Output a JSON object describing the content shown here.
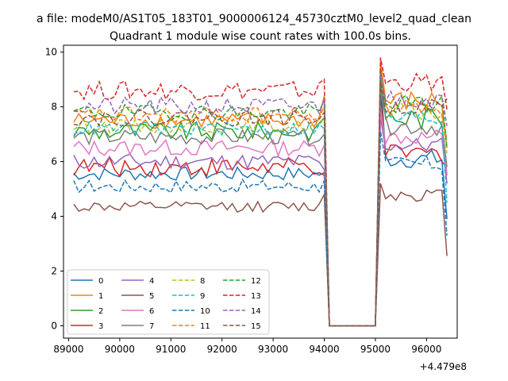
{
  "suptitle": "a file: modeM0/AS1T05_183T01_9000006124_45730cztM0_level2_quad_clean",
  "chart_data": {
    "type": "line",
    "title": "Quadrant 1 module wise count rates with 100.0s bins.",
    "xlabel": "",
    "ylabel": "",
    "x_offset_label": "+4.479e8",
    "xlim": [
      88900,
      96600
    ],
    "ylim": [
      -0.45,
      10.25
    ],
    "xticks": [
      89000,
      90000,
      91000,
      92000,
      93000,
      94000,
      95000,
      96000
    ],
    "xtick_labels": [
      "89000",
      "90000",
      "91000",
      "92000",
      "93000",
      "94000",
      "95000",
      "96000"
    ],
    "yticks": [
      0,
      2,
      4,
      6,
      8,
      10
    ],
    "ytick_labels": [
      "0",
      "2",
      "4",
      "6",
      "8",
      "10"
    ],
    "grid": false,
    "legend_position": "lower-left",
    "legend_columns": 4,
    "x": {
      "seg1_start": 89100,
      "seg1_end": 94000,
      "gap_points": [
        94100,
        94200,
        94300,
        94400,
        94500,
        94600,
        94700,
        94800,
        94900,
        95000
      ],
      "seg2_start": 95100,
      "seg2_end": 96400,
      "step": 100
    },
    "series": [
      {
        "name": "0",
        "color": "#1f77b4",
        "dash": "solid",
        "base1": 5.55,
        "amp1": 0.25,
        "end1": 5.6,
        "base2": 6.1,
        "amp2": 0.35,
        "peak": 9.2,
        "last": 3.9
      },
      {
        "name": "1",
        "color": "#ff7f0e",
        "dash": "solid",
        "base1": 7.5,
        "amp1": 0.3,
        "end1": 8.4,
        "base2": 8.2,
        "amp2": 0.4,
        "peak": 9.7,
        "last": 6.5
      },
      {
        "name": "2",
        "color": "#2ca02c",
        "dash": "solid",
        "base1": 7.1,
        "amp1": 0.35,
        "end1": 7.6,
        "base2": 7.6,
        "amp2": 0.45,
        "peak": 9.4,
        "last": 5.5
      },
      {
        "name": "3",
        "color": "#d62728",
        "dash": "solid",
        "base1": 5.8,
        "amp1": 0.35,
        "end1": 5.5,
        "base2": 6.3,
        "amp2": 0.35,
        "peak": 8.5,
        "last": 5.8
      },
      {
        "name": "4",
        "color": "#9467bd",
        "dash": "solid",
        "base1": 6.0,
        "amp1": 0.3,
        "end1": 5.7,
        "base2": 6.6,
        "amp2": 0.3,
        "peak": 7.6,
        "last": 5.2
      },
      {
        "name": "5",
        "color": "#8c564b",
        "dash": "solid",
        "base1": 4.35,
        "amp1": 0.2,
        "end1": 4.8,
        "base2": 4.8,
        "amp2": 0.25,
        "peak": 5.2,
        "last": 2.55
      },
      {
        "name": "6",
        "color": "#e377c2",
        "dash": "solid",
        "base1": 6.5,
        "amp1": 0.3,
        "end1": 6.6,
        "base2": 6.9,
        "amp2": 0.3,
        "peak": 7.9,
        "last": 5.5
      },
      {
        "name": "7",
        "color": "#7f7f7f",
        "dash": "solid",
        "base1": 6.9,
        "amp1": 0.3,
        "end1": 7.0,
        "base2": 7.3,
        "amp2": 0.35,
        "peak": 8.6,
        "last": 5.8
      },
      {
        "name": "8",
        "color": "#bcbd22",
        "dash": "dashed",
        "base1": 7.3,
        "amp1": 0.25,
        "end1": 7.6,
        "base2": 7.8,
        "amp2": 0.35,
        "peak": 9.0,
        "last": 6.3
      },
      {
        "name": "9",
        "color": "#17becf",
        "dash": "dashed",
        "base1": 7.2,
        "amp1": 0.25,
        "end1": 7.2,
        "base2": 7.6,
        "amp2": 0.35,
        "peak": 8.8,
        "last": 4.5
      },
      {
        "name": "10",
        "color": "#1f77b4",
        "dash": "dashed",
        "base1": 5.1,
        "amp1": 0.25,
        "end1": 5.3,
        "base2": 5.9,
        "amp2": 0.3,
        "peak": 7.1,
        "last": 3.3
      },
      {
        "name": "11",
        "color": "#ff7f0e",
        "dash": "dashed",
        "base1": 7.7,
        "amp1": 0.3,
        "end1": 8.0,
        "base2": 8.0,
        "amp2": 0.35,
        "peak": 9.1,
        "last": 6.8
      },
      {
        "name": "12",
        "color": "#2ca02c",
        "dash": "dashed",
        "base1": 7.8,
        "amp1": 0.3,
        "end1": 8.2,
        "base2": 8.1,
        "amp2": 0.35,
        "peak": 9.2,
        "last": 6.5
      },
      {
        "name": "13",
        "color": "#d62728",
        "dash": "dashed",
        "base1": 8.6,
        "amp1": 0.35,
        "end1": 9.0,
        "base2": 8.9,
        "amp2": 0.35,
        "peak": 9.8,
        "last": 7.9
      },
      {
        "name": "14",
        "color": "#9467bd",
        "dash": "dashed",
        "base1": 8.0,
        "amp1": 0.35,
        "end1": 8.3,
        "base2": 8.3,
        "amp2": 0.35,
        "peak": 9.2,
        "last": 7.3
      },
      {
        "name": "15",
        "color": "#8c564b",
        "dash": "dashed",
        "base1": 7.6,
        "amp1": 0.3,
        "end1": 7.8,
        "base2": 8.0,
        "amp2": 0.3,
        "peak": 8.9,
        "last": 8.3
      }
    ]
  }
}
